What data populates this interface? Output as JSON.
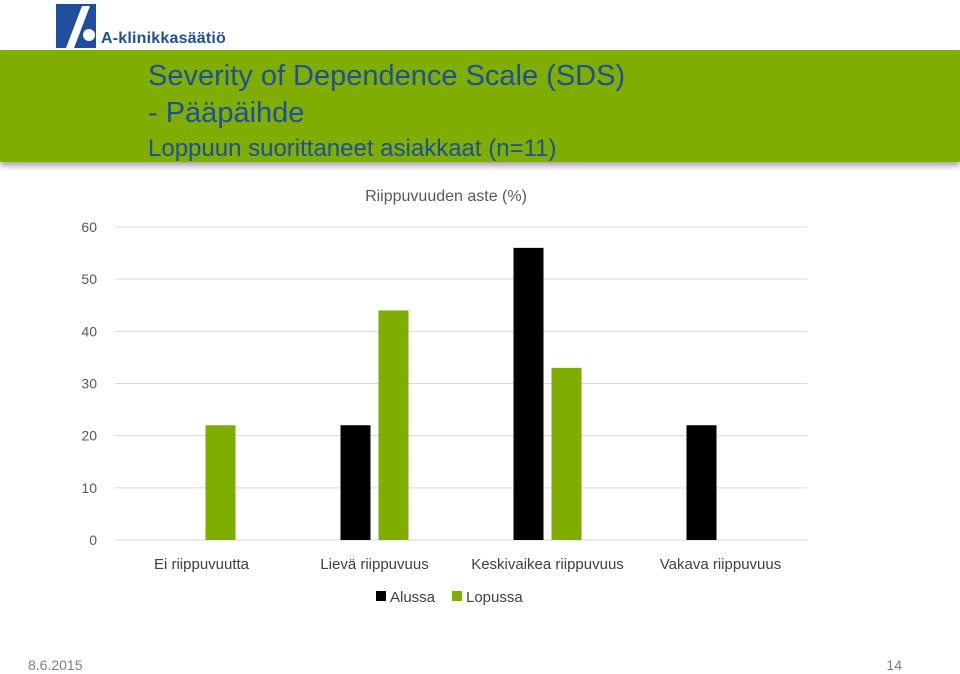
{
  "header": {
    "logo_text": "A-klinikkasäätiö",
    "title_line1": "Severity of Dependence Scale (SDS)",
    "title_line2": "- Pääpäihde",
    "title_line3": "Loppuun suorittaneet asiakkaat (n=11)"
  },
  "colors": {
    "banner": "#7fae00",
    "title_text": "#1f4f9c",
    "series_alussa": "#000000",
    "series_lopussa": "#7fae00",
    "gridline": "#d9d9d9"
  },
  "chart_data": {
    "type": "bar",
    "title": "Riippuvuuden aste (%)",
    "categories": [
      "Ei riippuvuutta",
      "Lievä riippuvuus",
      "Keskivaikea riippuvuus",
      "Vakava riippuvuus"
    ],
    "series": [
      {
        "name": "Alussa",
        "values": [
          0,
          22,
          56,
          22
        ]
      },
      {
        "name": "Lopussa",
        "values": [
          22,
          44,
          33,
          0
        ]
      }
    ],
    "ylim": [
      0,
      60
    ],
    "yticks": [
      0,
      10,
      20,
      30,
      40,
      50,
      60
    ],
    "grid": true,
    "legend": "bottom"
  },
  "footer": {
    "date": "8.6.2015",
    "page": "14"
  }
}
